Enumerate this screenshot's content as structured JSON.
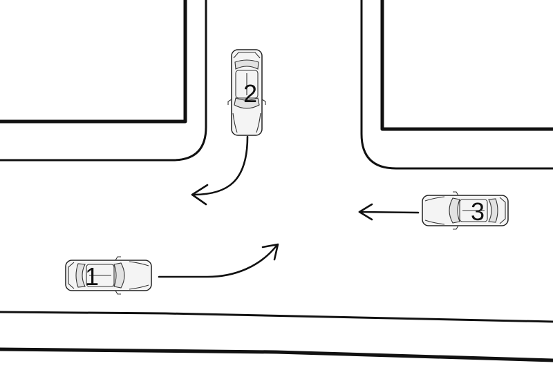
{
  "cars": [
    {
      "id": "car-1",
      "label": "1",
      "heading": "east",
      "path": "turn-left-north"
    },
    {
      "id": "car-2",
      "label": "2",
      "heading": "south",
      "path": "turn-right-west"
    },
    {
      "id": "car-3",
      "label": "3",
      "heading": "west",
      "path": "straight-west"
    }
  ],
  "colors": {
    "ink": "#111111",
    "car_fill": "#f4f4f4",
    "background": "#ffffff"
  }
}
